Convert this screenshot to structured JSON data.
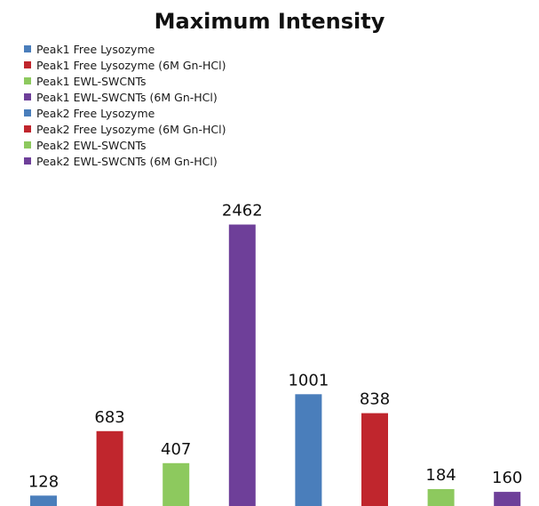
{
  "chart_data": {
    "type": "bar",
    "title": "Maximum Intensity",
    "xlabel": "",
    "ylabel": "",
    "grid": false,
    "legend_placement": "top-left",
    "ylim": [
      0,
      2700
    ],
    "series": [
      {
        "name": "Peak1 Free Lysozyme",
        "color": "#4A7EBB",
        "value": 128,
        "label": "128"
      },
      {
        "name": "Peak1 Free Lysozyme (6M Gn-HCl)",
        "color": "#C0262D",
        "value": 683,
        "label": "683"
      },
      {
        "name": "Peak1 EWL-SWCNTs",
        "color": "#8DC95E",
        "value": 407,
        "label": "407"
      },
      {
        "name": "Peak1 EWL-SWCNTs (6M Gn-HCl)",
        "color": "#6E3F99",
        "value": 2462,
        "label": "2462"
      },
      {
        "name": "Peak2 Free Lysozyme",
        "color": "#4A7EBB",
        "value": 1001,
        "label": "1001"
      },
      {
        "name": "Peak2 Free Lysozyme (6M Gn-HCl)",
        "color": "#C0262D",
        "value": 838,
        "label": "838"
      },
      {
        "name": "Peak2 EWL-SWCNTs",
        "color": "#8DC95E",
        "value": 184,
        "label": "184"
      },
      {
        "name": "Peak2 EWL-SWCNTs (6M Gn-HCl)",
        "color": "#6E3F99",
        "value": 160,
        "label": "160"
      }
    ]
  }
}
